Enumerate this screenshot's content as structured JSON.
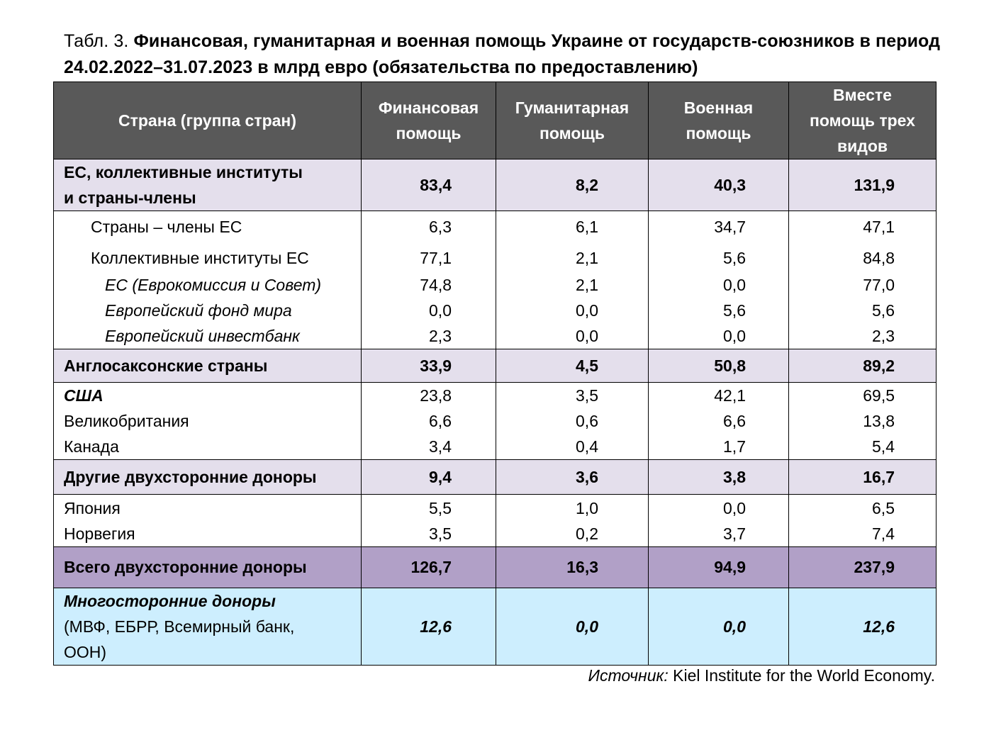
{
  "caption": {
    "prefix": "Табл. 3. ",
    "title": "Финансовая, гуманитарная и военная помощь Украине от государств-союзников в период 24.02.2022–31.07.2023 в млрд евро (обязательства по предоставлению)"
  },
  "header": {
    "country": "Страна (группа стран)",
    "financial": [
      "Финансовая",
      "помощь"
    ],
    "humanitarian": [
      "Гуманитарная",
      "помощь"
    ],
    "military": [
      "Военная",
      "помощь"
    ],
    "total": [
      "Вместе",
      "помощь трех",
      "видов"
    ]
  },
  "eu": {
    "name": [
      "ЕС, коллективные институты",
      "и страны-члены"
    ],
    "values": [
      "83,4",
      "8,2",
      "40,3",
      "131,9"
    ],
    "sub": {
      "names": [
        "Страны – члены ЕС",
        "Коллективные институты ЕС",
        "ЕС (Еврокомиссия и Совет)",
        "Европейский фонд мира",
        "Европейский инвестбанк"
      ],
      "financial": [
        "6,3",
        "77,1",
        "74,8",
        "0,0",
        "2,3"
      ],
      "humanitarian": [
        "6,1",
        "2,1",
        "2,1",
        "0,0",
        "0,0"
      ],
      "military": [
        "34,7",
        "5,6",
        "0,0",
        "5,6",
        "0,0"
      ],
      "total": [
        "47,1",
        "84,8",
        "77,0",
        "5,6",
        "2,3"
      ]
    }
  },
  "anglo": {
    "name": "Англосаксонские страны",
    "values": [
      "33,9",
      "4,5",
      "50,8",
      "89,2"
    ],
    "sub": {
      "names": [
        "США",
        "Великобритания",
        "Канада"
      ],
      "financial": [
        "23,8",
        "6,6",
        "3,4"
      ],
      "humanitarian": [
        "3,5",
        "0,6",
        "0,4"
      ],
      "military": [
        "42,1",
        "6,6",
        "1,7"
      ],
      "total": [
        "69,5",
        "13,8",
        "5,4"
      ]
    }
  },
  "other": {
    "name": "Другие двухсторонние доноры",
    "values": [
      "9,4",
      "3,6",
      "3,8",
      "16,7"
    ],
    "sub": {
      "names": [
        "Япония",
        "Норвегия"
      ],
      "financial": [
        "5,5",
        "3,5"
      ],
      "humanitarian": [
        "1,0",
        "0,2"
      ],
      "military": [
        "0,0",
        "3,7"
      ],
      "total": [
        "6,5",
        "7,4"
      ]
    }
  },
  "bilateral_total": {
    "name": "Всего двухсторонние доноры",
    "values": [
      "126,7",
      "16,3",
      "94,9",
      "237,9"
    ]
  },
  "multilateral": {
    "name_bold": "Многосторонние доноры",
    "name_rest": [
      "(МВФ, ЕБРР, Всемирный банк,",
      "ООН)"
    ],
    "values": [
      "12,6",
      "0,0",
      "0,0",
      "12,6"
    ]
  },
  "source": {
    "label": "Источник:",
    "text": " Kiel Institute for the World Economy."
  }
}
